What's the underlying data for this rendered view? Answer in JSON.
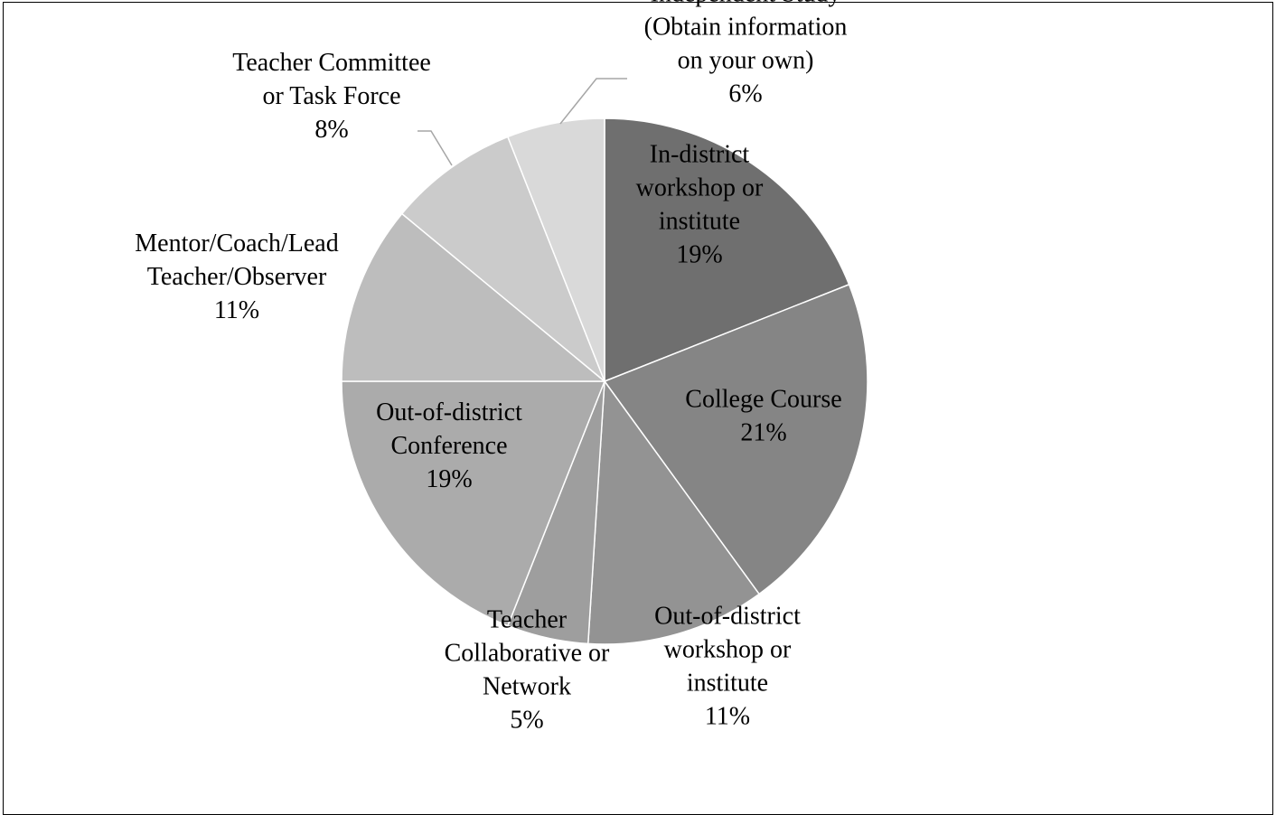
{
  "chart_data": {
    "type": "pie",
    "start_angle_deg": 0,
    "direction": "clockwise",
    "slices": [
      {
        "label_lines": [
          "In-district",
          "workshop or",
          "institute"
        ],
        "pct_label": "19%",
        "value": 19,
        "color": "#6f6f6f"
      },
      {
        "label_lines": [
          "College Course"
        ],
        "pct_label": "21%",
        "value": 21,
        "color": "#858585"
      },
      {
        "label_lines": [
          "Out-of-district",
          "workshop or",
          "institute"
        ],
        "pct_label": "11%",
        "value": 11,
        "color": "#939393"
      },
      {
        "label_lines": [
          "Teacher",
          "Collaborative or",
          "Network"
        ],
        "pct_label": "5%",
        "value": 5,
        "color": "#9e9e9e"
      },
      {
        "label_lines": [
          "Out-of-district",
          "Conference"
        ],
        "pct_label": "19%",
        "value": 19,
        "color": "#ababab"
      },
      {
        "label_lines": [
          "Mentor/Coach/Lead",
          "Teacher/Observer"
        ],
        "pct_label": "11%",
        "value": 11,
        "color": "#bdbdbd"
      },
      {
        "label_lines": [
          "Teacher Committee",
          "or Task Force"
        ],
        "pct_label": "8%",
        "value": 8,
        "color": "#cbcbcb"
      },
      {
        "label_lines": [
          "Independent Study",
          "(Obtain information",
          "on your own)"
        ],
        "pct_label": "6%",
        "value": 6,
        "color": "#d9d9d9"
      }
    ]
  }
}
